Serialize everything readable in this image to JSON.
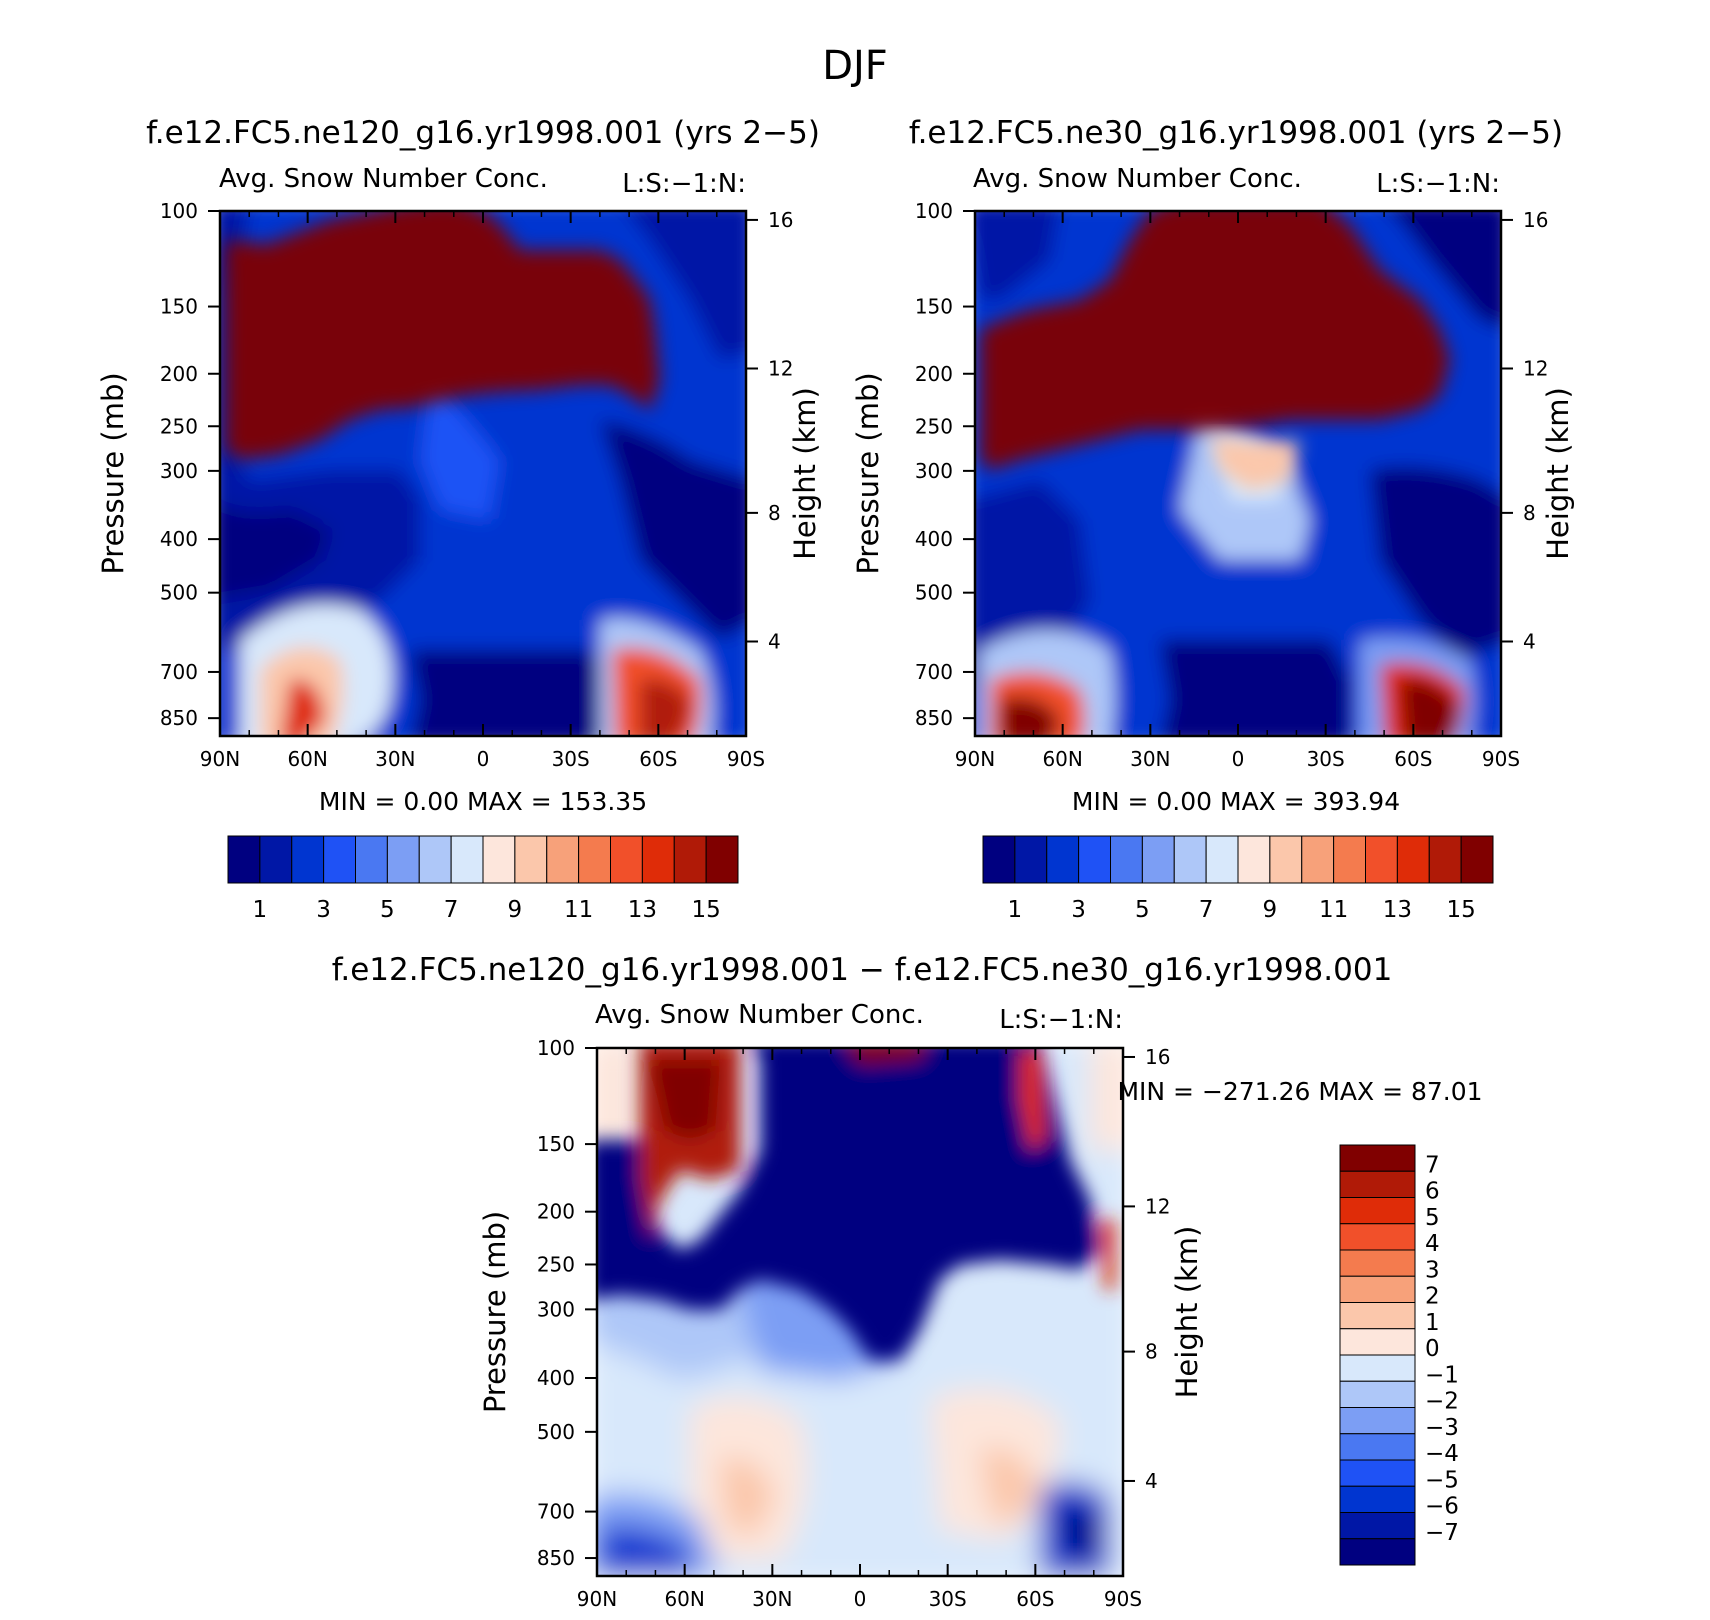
{
  "figure": {
    "season": "DJF"
  },
  "colors": {
    "abs_scale": [
      "#000080",
      "#0017a6",
      "#0035d0",
      "#1f52f5",
      "#4a78f2",
      "#7c9ef4",
      "#aec7f8",
      "#d8e8fb",
      "#fde6dc",
      "#fbc7ab",
      "#f7a17a",
      "#f47b4e",
      "#f1502a",
      "#df2c08",
      "#b01a07",
      "#800000"
    ],
    "diff_scale": [
      "#000080",
      "#0017a6",
      "#0035d0",
      "#1f52f5",
      "#4a78f2",
      "#7c9ef4",
      "#aec7f8",
      "#d8e8fb",
      "#fde6dc",
      "#fbc7ab",
      "#f7a17a",
      "#f47b4e",
      "#f1502a",
      "#df2c08",
      "#b01a07",
      "#800000"
    ]
  },
  "chart_data": [
    {
      "type": "heatmap",
      "title": "f.e12.FC5.ne120_g16.yr1998.001 (yrs 2−5)",
      "subtitle_left": "Avg. Snow Number Conc.",
      "subtitle_right": "L:S:−1:N:",
      "xlabel": "",
      "ylabel_left": "Pressure (mb)",
      "ylabel_right": "Height (km)",
      "x_ticks": [
        "90N",
        "60N",
        "30N",
        "0",
        "30S",
        "60S",
        "90S"
      ],
      "pressure_ticks": [
        "100",
        "150",
        "200",
        "250",
        "300",
        "400",
        "500",
        "700",
        "850"
      ],
      "height_ticks": [
        "16",
        "12",
        "8",
        "4"
      ],
      "min_label": "MIN =",
      "min_value": "0.00",
      "max_label": "MAX =",
      "max_value": "153.35",
      "colorbar_labels": [
        "1",
        "3",
        "5",
        "7",
        "9",
        "11",
        "13",
        "15"
      ],
      "colorbar_levels": 16
    },
    {
      "type": "heatmap",
      "title": "f.e12.FC5.ne30_g16.yr1998.001 (yrs 2−5)",
      "subtitle_left": "Avg. Snow Number Conc.",
      "subtitle_right": "L:S:−1:N:",
      "xlabel": "",
      "ylabel_left": "Pressure (mb)",
      "ylabel_right": "Height (km)",
      "x_ticks": [
        "90N",
        "60N",
        "30N",
        "0",
        "30S",
        "60S",
        "90S"
      ],
      "pressure_ticks": [
        "100",
        "150",
        "200",
        "250",
        "300",
        "400",
        "500",
        "700",
        "850"
      ],
      "height_ticks": [
        "16",
        "12",
        "8",
        "4"
      ],
      "min_label": "MIN =",
      "min_value": "0.00",
      "max_label": "MAX =",
      "max_value": "393.94",
      "colorbar_labels": [
        "1",
        "3",
        "5",
        "7",
        "9",
        "11",
        "13",
        "15"
      ],
      "colorbar_levels": 16
    },
    {
      "type": "heatmap",
      "title": "f.e12.FC5.ne120_g16.yr1998.001 − f.e12.FC5.ne30_g16.yr1998.001",
      "subtitle_left": "Avg. Snow Number Conc.",
      "subtitle_right": "L:S:−1:N:",
      "xlabel": "",
      "ylabel_left": "Pressure (mb)",
      "ylabel_right": "Height (km)",
      "x_ticks": [
        "90N",
        "60N",
        "30N",
        "0",
        "30S",
        "60S",
        "90S"
      ],
      "pressure_ticks": [
        "100",
        "150",
        "200",
        "250",
        "300",
        "400",
        "500",
        "700",
        "850"
      ],
      "height_ticks": [
        "16",
        "12",
        "8",
        "4"
      ],
      "min_label": "MIN =",
      "min_value": "−271.26",
      "max_label": "MAX =",
      "max_value": "87.01",
      "colorbar_labels": [
        "7",
        "6",
        "5",
        "4",
        "3",
        "2",
        "1",
        "0",
        "−1",
        "−2",
        "−3",
        "−4",
        "−5",
        "−6",
        "−7"
      ],
      "colorbar_levels": 16
    }
  ]
}
